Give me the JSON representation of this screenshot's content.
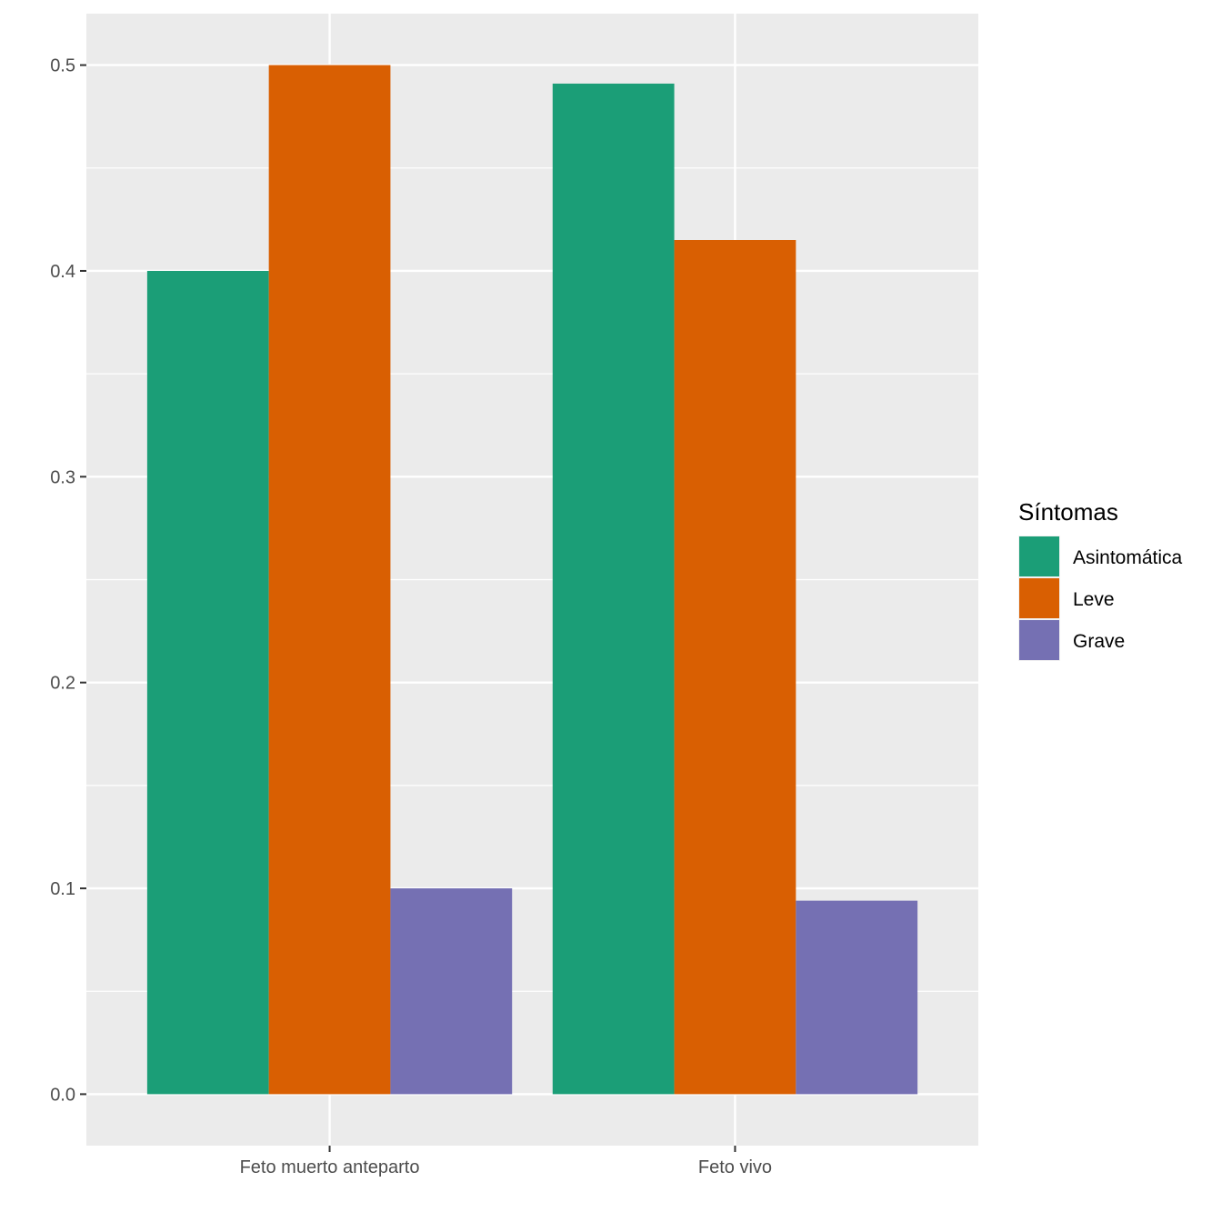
{
  "chart_data": {
    "type": "bar",
    "categories": [
      "Feto muerto anteparto",
      "Feto vivo"
    ],
    "series": [
      {
        "name": "Asintomática",
        "values": [
          0.4,
          0.491
        ],
        "color": "#1B9E77"
      },
      {
        "name": "Leve",
        "values": [
          0.5,
          0.415
        ],
        "color": "#D95F02"
      },
      {
        "name": "Grave",
        "values": [
          0.1,
          0.094
        ],
        "color": "#7570B3"
      }
    ],
    "title": "",
    "xlabel": "",
    "ylabel": "",
    "ylim": [
      -0.025,
      0.525
    ],
    "yticks": [
      "0.0",
      "0.1",
      "0.2",
      "0.3",
      "0.4",
      "0.5"
    ],
    "ytick_values": [
      0,
      0.1,
      0.2,
      0.3,
      0.4,
      0.5
    ],
    "legend_title": "Síntomas",
    "legend_position": "right",
    "grid": true,
    "panel_background": "#EBEBEB",
    "grid_color": "#FFFFFF"
  }
}
